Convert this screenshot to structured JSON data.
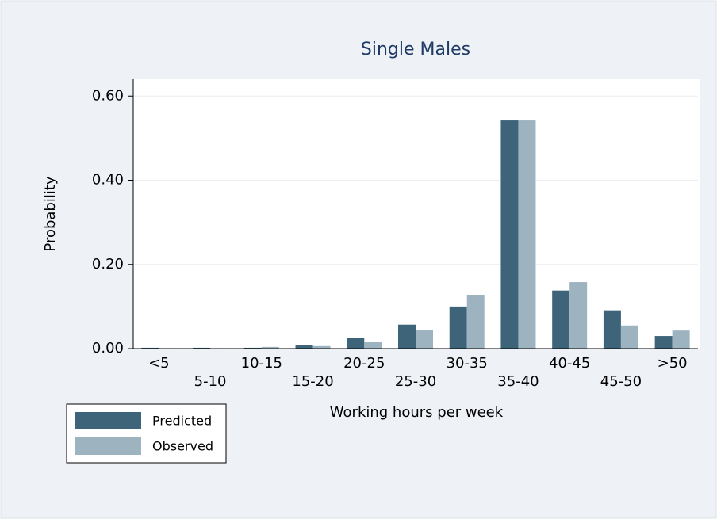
{
  "chart_data": {
    "type": "bar",
    "title": "Single Males",
    "x_label": "Working hours per week",
    "y_label": "Probability",
    "categories": [
      "<5",
      "5-10",
      "10-15",
      "15-20",
      "20-25",
      "25-30",
      "30-35",
      "35-40",
      "40-45",
      "45-50",
      ">50"
    ],
    "series": [
      {
        "name": "Predicted",
        "color": "#3d6478",
        "values": [
          0.002,
          0.002,
          0.002,
          0.009,
          0.026,
          0.057,
          0.1,
          0.542,
          0.138,
          0.091,
          0.03
        ]
      },
      {
        "name": "Observed",
        "color": "#9db4c0",
        "values": [
          0.001,
          0.001,
          0.004,
          0.006,
          0.015,
          0.045,
          0.128,
          0.542,
          0.158,
          0.055,
          0.043
        ]
      }
    ],
    "ylim": [
      0,
      0.64
    ],
    "yticks": [
      {
        "value": 0,
        "label": "0.00"
      },
      {
        "value": 0.2,
        "label": "0.20"
      },
      {
        "value": 0.4,
        "label": "0.40"
      },
      {
        "value": 0.6,
        "label": "0.60"
      }
    ],
    "grid": true,
    "legend": "bottom-left"
  }
}
